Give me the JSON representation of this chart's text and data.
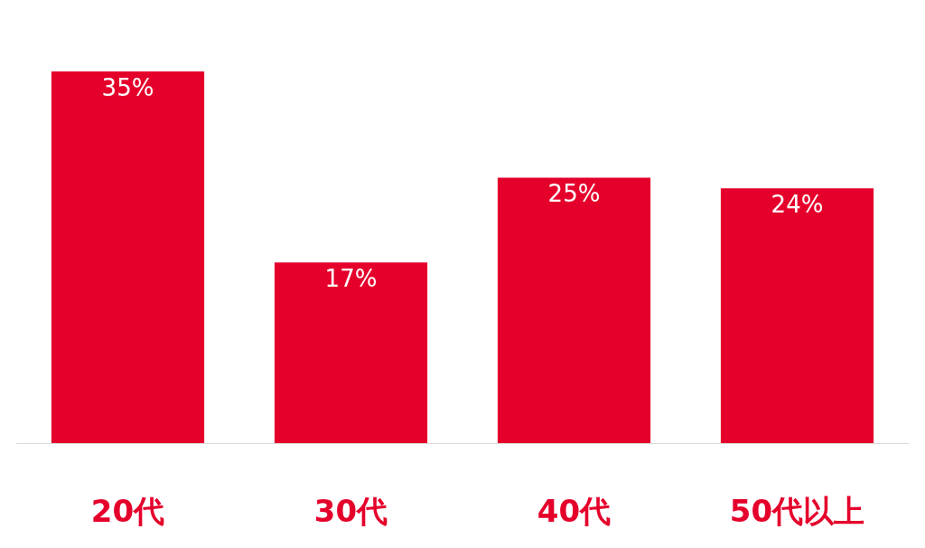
{
  "chart_data": {
    "type": "bar",
    "categories": [
      "20代",
      "30代",
      "40代",
      "50代以上"
    ],
    "values": [
      35,
      17,
      25,
      24
    ],
    "value_labels": [
      "35%",
      "17%",
      "25%",
      "24%"
    ],
    "color": "#e4002b"
  }
}
